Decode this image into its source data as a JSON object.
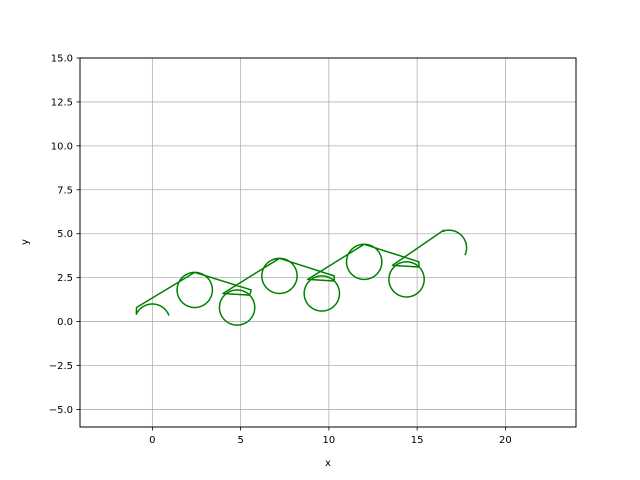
{
  "chart_data": {
    "type": "line",
    "title": "",
    "xlabel": "x",
    "ylabel": "y",
    "xlim": [
      -4.1,
      24.0
    ],
    "ylim": [
      -6.0,
      15.0
    ],
    "grid": true,
    "x_ticks": [
      0,
      5,
      10,
      15,
      20
    ],
    "x_tick_labels": [
      "0",
      "5",
      "10",
      "15",
      "20"
    ],
    "y_ticks": [
      -5.0,
      -2.5,
      0.0,
      2.5,
      5.0,
      7.5,
      10.0,
      12.5,
      15.0
    ],
    "y_tick_labels": [
      "−5.0",
      "−2.5",
      "0.0",
      "2.5",
      "5.0",
      "7.5",
      "10.0",
      "12.5",
      "15.0"
    ],
    "colors": {
      "series": "#008000",
      "grid": "#b0b0b0",
      "axes": "#000000"
    },
    "series": [
      {
        "segments": [
          {
            "kind": "arc",
            "center": [
              0.0,
              0.0
            ],
            "radius": 1.0,
            "start_deg": 20,
            "end_deg": 155,
            "ccw": false
          },
          {
            "kind": "line",
            "from": [
              -0.9,
              0.8
            ],
            "to": [
              2.4,
              2.8
            ]
          },
          {
            "kind": "arc",
            "center": [
              2.4,
              1.8
            ],
            "radius": 1.0,
            "start_deg": 90,
            "end_deg": 450,
            "ccw": false
          },
          {
            "kind": "line",
            "from": [
              2.4,
              2.8
            ],
            "to": [
              5.6,
              1.8
            ]
          },
          {
            "kind": "arc",
            "center": [
              4.8,
              0.8
            ],
            "radius": 1.0,
            "start_deg": 45,
            "end_deg": 405,
            "ccw": false
          },
          {
            "kind": "line",
            "from": [
              4.0,
              1.6
            ],
            "to": [
              7.2,
              3.6
            ]
          },
          {
            "kind": "arc",
            "center": [
              7.2,
              2.6
            ],
            "radius": 1.0,
            "start_deg": 90,
            "end_deg": 450,
            "ccw": false
          },
          {
            "kind": "line",
            "from": [
              7.2,
              3.6
            ],
            "to": [
              10.3,
              2.6
            ]
          },
          {
            "kind": "arc",
            "center": [
              9.6,
              1.6
            ],
            "radius": 1.0,
            "start_deg": 45,
            "end_deg": 405,
            "ccw": false
          },
          {
            "kind": "line",
            "from": [
              8.8,
              2.4
            ],
            "to": [
              12.0,
              4.4
            ]
          },
          {
            "kind": "arc",
            "center": [
              12.0,
              3.4
            ],
            "radius": 1.0,
            "start_deg": 90,
            "end_deg": 450,
            "ccw": false
          },
          {
            "kind": "line",
            "from": [
              12.0,
              4.4
            ],
            "to": [
              15.1,
              3.4
            ]
          },
          {
            "kind": "arc",
            "center": [
              14.4,
              2.4
            ],
            "radius": 1.0,
            "start_deg": 45,
            "end_deg": 405,
            "ccw": false
          },
          {
            "kind": "line",
            "from": [
              13.6,
              3.2
            ],
            "to": [
              16.5,
              5.2
            ]
          },
          {
            "kind": "arc",
            "center": [
              16.8,
              4.2
            ],
            "radius": 1.0,
            "start_deg": 110,
            "end_deg": -25,
            "ccw": false
          }
        ]
      }
    ]
  }
}
